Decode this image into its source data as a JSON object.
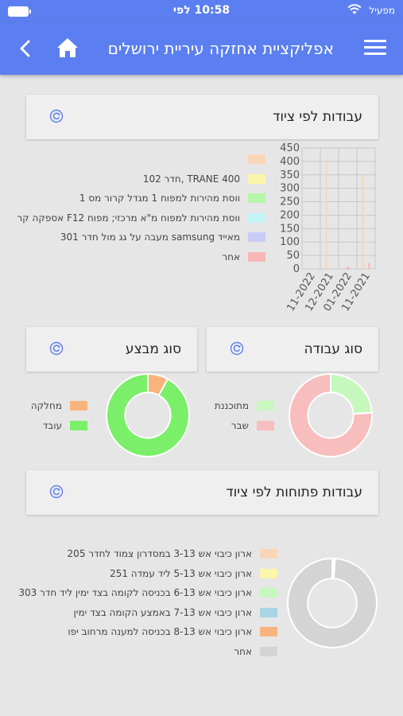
{
  "status_bar": {
    "time": "10:58 לפי",
    "carrier": "מפעיל"
  },
  "app_bar": {
    "title": "אפליקציית אחזקה עיריית ירושלים"
  },
  "card_equipment": {
    "title": "עבודות לפי ציוד",
    "legend": [
      {
        "label": "",
        "color": "#fad6b8"
      },
      {
        "label": "TRANE 400 ,חדר 102",
        "color": "#fbf6aa"
      },
      {
        "label": "ווסת מהירות למפוח 1 מגדל קרור מס 1",
        "color": "#b6f7a7"
      },
      {
        "label": "ווסת מהירות למפוח מ\"א מרכזי; מפוח F12 אספקה קר",
        "color": "#c4f4f3"
      },
      {
        "label": "מאייד samsung מעבה על גג מול חדר 301",
        "color": "#c9ccf7"
      },
      {
        "label": "אחר",
        "color": "#f8b7b7"
      }
    ],
    "chart_data": {
      "type": "bar",
      "categories": [
        "11-2022",
        "12-2021",
        "01-2022",
        "11-2021"
      ],
      "series": [
        {
          "values": [
            0,
            412,
            0,
            340
          ],
          "color": "#fad6b8"
        },
        {
          "values": [
            0,
            0,
            8,
            0
          ],
          "color": "#f6aabb"
        },
        {
          "values": [
            0,
            0,
            0,
            22
          ],
          "color": "#f8b7b7"
        }
      ],
      "ylim": [
        0,
        450
      ],
      "yticks": [
        0,
        50,
        100,
        150,
        200,
        250,
        300,
        350,
        400,
        450
      ],
      "grid": true
    }
  },
  "card_work_type": {
    "title": "סוג עבודה",
    "legend": [
      {
        "label": "מתוכננת",
        "color": "#c6f8bd"
      },
      {
        "label": "שבר",
        "color": "#f8bdbd"
      }
    ],
    "chart_data": {
      "type": "pie",
      "labels": [
        "מתוכננת",
        "שבר"
      ],
      "values": [
        24,
        76
      ],
      "colors": [
        "#c6f8bd",
        "#f8bdbd"
      ]
    }
  },
  "card_performer": {
    "title": "סוג מבצע",
    "legend": [
      {
        "label": "מחלקה",
        "color": "#f8b47c"
      },
      {
        "label": "עובד",
        "color": "#7bef69"
      }
    ],
    "chart_data": {
      "type": "pie",
      "labels": [
        "מחלקה",
        "עובד"
      ],
      "values": [
        8,
        92
      ],
      "colors": [
        "#f8b47c",
        "#7bef69"
      ]
    }
  },
  "card_open_equipment": {
    "title": "עבודות פתוחות לפי ציוד",
    "legend": [
      {
        "label": "ארון כיבוי אש 3-13 במסדרון צמוד לחדר 205",
        "color": "#fad6b8"
      },
      {
        "label": "ארון כיבוי אש 5-13 ליד עמדה 251",
        "color": "#fbf6aa"
      },
      {
        "label": "ארון כיבוי אש 6-13 בכניסה לקומה בצד ימין ליד חדר 303",
        "color": "#c6f8bd"
      },
      {
        "label": "ארון כיבוי אש 7-13 באמצע הקומה בצד ימין",
        "color": "#a9d4e6"
      },
      {
        "label": "ארון כיבוי אש 8-13 בכניסה למענה מרחוב יפו",
        "color": "#f8b47c"
      },
      {
        "label": "אחר",
        "color": "#d4d4d4"
      }
    ],
    "chart_data": {
      "type": "pie",
      "labels": [
        "ארון כיבוי אש 3-13 במסדרון צמוד לחדר 205",
        "ארון כיבוי אש 5-13 ליד עמדה 251",
        "ארון כיבוי אש 6-13 בכניסה לקומה בצד ימין ליד חדר 303",
        "ארון כיבוי אש 7-13 באמצע הקומה בצד ימין",
        "ארון כיבוי אש 8-13 בכניסה למענה מרחוב יפו",
        "אחר"
      ],
      "values": [
        0.2,
        0.2,
        0.2,
        0.2,
        0.2,
        99
      ],
      "colors": [
        "#fad6b8",
        "#fbf6aa",
        "#c6f8bd",
        "#a9d4e6",
        "#f8b47c",
        "#d4d4d4"
      ]
    }
  },
  "icons": {
    "refresh": "refresh-icon",
    "home": "home-icon",
    "back": "chevron-left-icon",
    "menu": "hamburger-menu-icon",
    "wifi": "wifi-icon",
    "battery": "battery-icon"
  }
}
